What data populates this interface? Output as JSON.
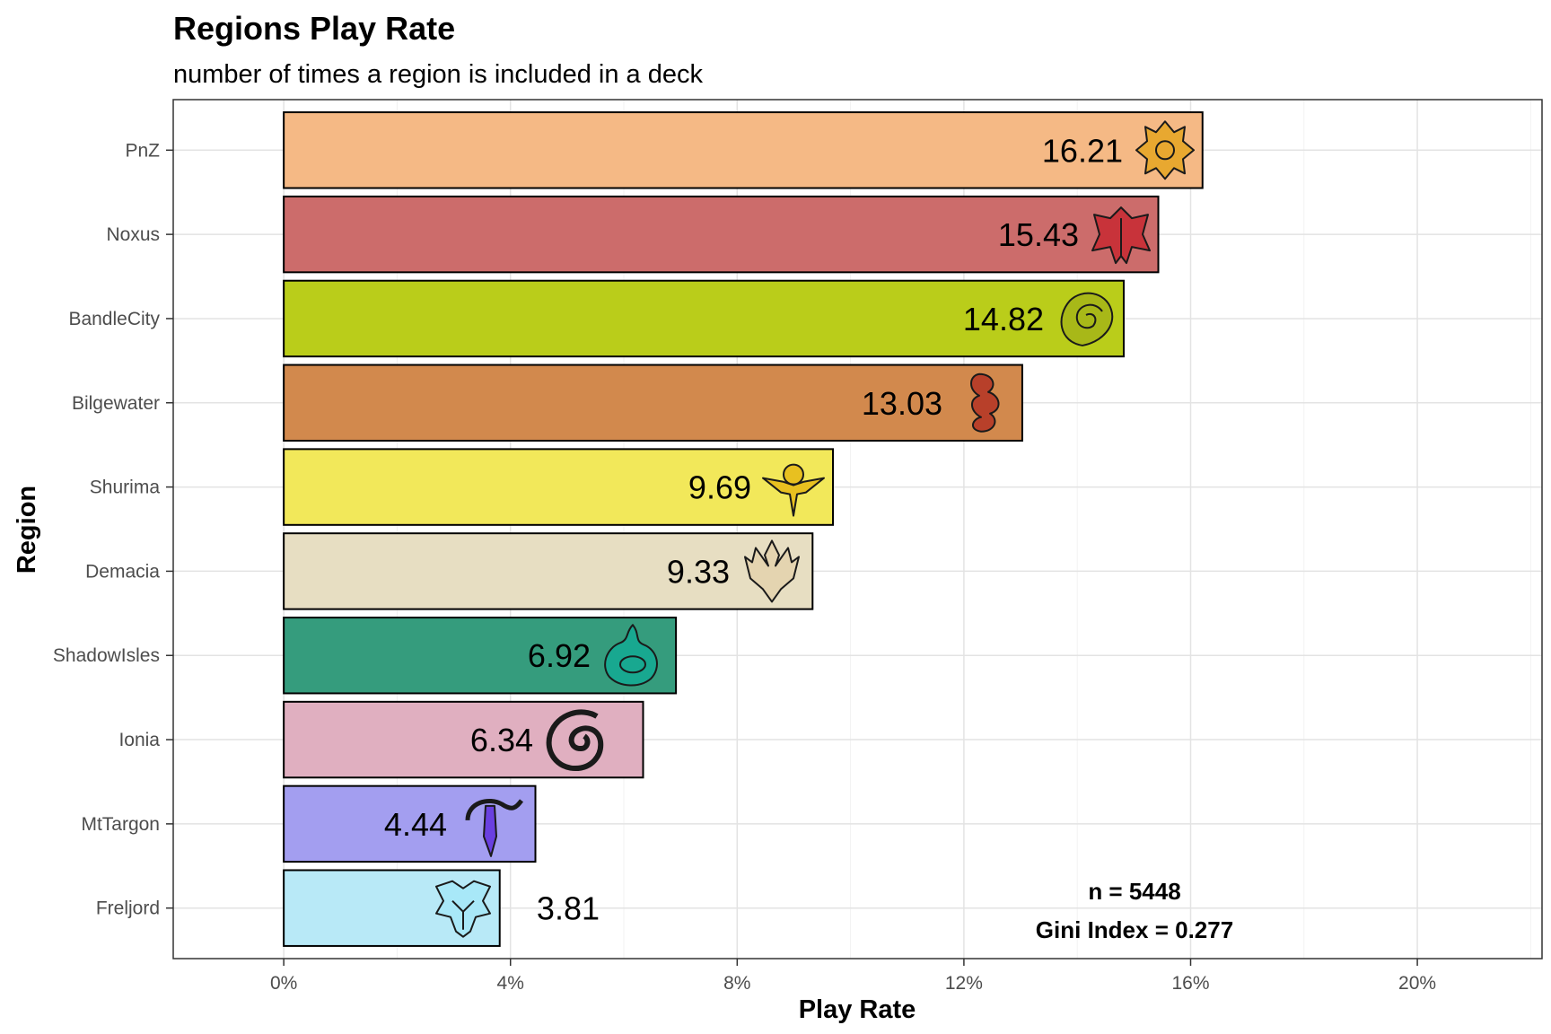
{
  "chart_data": {
    "type": "bar",
    "orientation": "horizontal",
    "title": "Regions Play Rate",
    "subtitle": "number of times a region is included in a deck",
    "xlabel": "Play Rate",
    "ylabel": "Region",
    "xlim": [
      -1.95,
      22.2
    ],
    "xticks": [
      0,
      4,
      8,
      12,
      16,
      20
    ],
    "xtick_labels": [
      "0%",
      "4%",
      "8%",
      "12%",
      "16%",
      "20%"
    ],
    "grid": true,
    "categories": [
      "PnZ",
      "Noxus",
      "BandleCity",
      "Bilgewater",
      "Shurima",
      "Demacia",
      "ShadowIsles",
      "Ionia",
      "MtTargon",
      "Freljord"
    ],
    "values": [
      16.21,
      15.43,
      14.82,
      13.03,
      9.69,
      9.33,
      6.92,
      6.34,
      4.44,
      3.81
    ],
    "value_labels": [
      "16.21",
      "15.43",
      "14.82",
      "13.03",
      "9.69",
      "9.33",
      "6.92",
      "6.34",
      "4.44",
      "3.81"
    ],
    "colors": [
      "#F5B985",
      "#CC6C6B",
      "#BACD1A",
      "#D2894D",
      "#F2E85A",
      "#E7DEC2",
      "#359C7D",
      "#E0AFC0",
      "#A39EF0",
      "#B8E9F7"
    ],
    "icons": [
      "pnz-crest-icon",
      "noxus-crest-icon",
      "bandlecity-crest-icon",
      "bilgewater-crest-icon",
      "shurima-crest-icon",
      "demacia-crest-icon",
      "shadowisles-crest-icon",
      "ionia-crest-icon",
      "mttargon-crest-icon",
      "freljord-crest-icon"
    ],
    "icon_colors": [
      "#E8A830",
      "#C8333A",
      "#A8B818",
      "#B8402A",
      "#E8C020",
      "#E4D4B0",
      "#18A890",
      "#D85A88",
      "#6A40E0",
      "#A8E8F8"
    ],
    "annotations": [
      "n = 5448",
      "Gini Index = 0.277"
    ]
  }
}
